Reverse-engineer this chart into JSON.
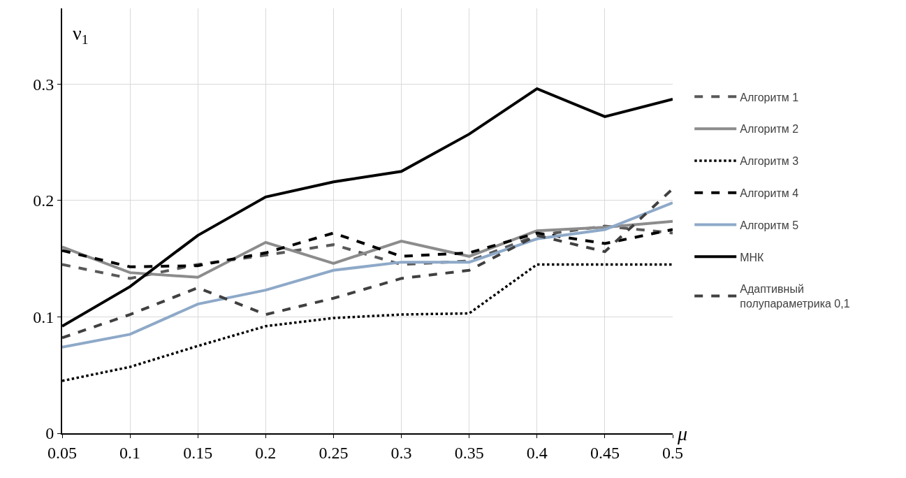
{
  "chart_data": {
    "type": "line",
    "xlabel": "μ",
    "ylabel": "ν$_{1}$",
    "x": [
      0.05,
      0.1,
      0.15,
      0.2,
      0.25,
      0.3,
      0.35,
      0.4,
      0.45,
      0.5
    ],
    "xlim": [
      0.05,
      0.5
    ],
    "xticks": [
      0.05,
      0.1,
      0.15,
      0.2,
      0.25,
      0.3,
      0.35,
      0.4,
      0.45,
      0.5
    ],
    "ylim": [
      0,
      0.365
    ],
    "yticks": [
      0,
      0.1,
      0.2,
      0.3
    ],
    "grid": true,
    "legend": "right",
    "marker": "none",
    "series": [
      {
        "name": "Алгоритм 1",
        "color": "#595959",
        "line_style": "dashed",
        "values": [
          0.145,
          0.133,
          0.145,
          0.153,
          0.162,
          0.145,
          0.148,
          0.17,
          0.178,
          0.172
        ]
      },
      {
        "name": "Алгоритм 2",
        "color": "#8c8c8c",
        "line_style": "solid",
        "values": [
          0.16,
          0.138,
          0.134,
          0.164,
          0.146,
          0.165,
          0.152,
          0.174,
          0.177,
          0.182
        ]
      },
      {
        "name": "Алгоритм 3",
        "color": "#000000",
        "line_style": "dotted",
        "values": [
          0.045,
          0.057,
          0.075,
          0.092,
          0.099,
          0.102,
          0.103,
          0.145,
          0.145,
          0.145
        ]
      },
      {
        "name": "Алгоритм 4",
        "color": "#000000",
        "line_style": "dashed",
        "values": [
          0.157,
          0.143,
          0.144,
          0.155,
          0.172,
          0.152,
          0.155,
          0.172,
          0.163,
          0.175
        ]
      },
      {
        "name": "Алгоритм 5",
        "color": "#8ea9c8",
        "line_style": "solid",
        "values": [
          0.074,
          0.085,
          0.111,
          0.123,
          0.14,
          0.147,
          0.147,
          0.167,
          0.175,
          0.198
        ]
      },
      {
        "name": "МНК",
        "color": "#000000",
        "line_style": "solid",
        "values": [
          0.092,
          0.126,
          0.17,
          0.203,
          0.216,
          0.225,
          0.257,
          0.296,
          0.272,
          0.287
        ]
      },
      {
        "name": "Адаптивный\nполупараметрика 0,1",
        "color": "#404040",
        "line_style": "dashed",
        "values": [
          0.082,
          0.102,
          0.125,
          0.102,
          0.116,
          0.133,
          0.14,
          0.17,
          0.156,
          0.21
        ]
      }
    ]
  }
}
